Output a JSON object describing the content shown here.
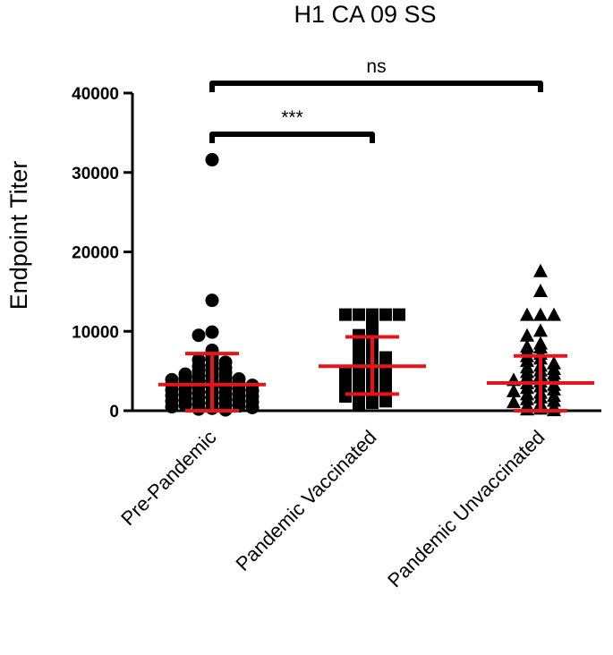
{
  "chart_data": {
    "type": "scatter",
    "title": "H1 CA 09 SS",
    "xlabel": "",
    "ylabel": "Endpoint Titer",
    "ylim": [
      0,
      40000
    ],
    "yticks": [
      0,
      10000,
      20000,
      30000,
      40000
    ],
    "ytick_labels": [
      "0",
      "10000",
      "20000",
      "30000",
      "40000"
    ],
    "grid": false,
    "legend": "none",
    "categories": [
      "Pre-Pandemic",
      "Pandemic Vaccinated",
      "Pandemic Unvaccinated"
    ],
    "summary_color": "#e8141c",
    "series": [
      {
        "category": "Pre-Pandemic",
        "marker": "circle",
        "mean": 3300,
        "sd_low": 0,
        "sd_high": 7200,
        "values": [
          31600,
          13900,
          9900,
          9500,
          7600,
          6800,
          6500,
          6400,
          6100,
          5800,
          5600,
          5400,
          5200,
          5000,
          4800,
          4600,
          4500,
          4300,
          4200,
          4100,
          4000,
          3900,
          3800,
          3700,
          3600,
          3500,
          3400,
          3300,
          3200,
          3100,
          3000,
          2900,
          2800,
          2700,
          2600,
          2500,
          2400,
          2300,
          2200,
          2100,
          2000,
          1900,
          1800,
          1700,
          1600,
          1500,
          1400,
          1300,
          1200,
          1100,
          1000,
          900,
          800,
          700,
          600,
          500,
          400,
          300,
          200,
          100
        ]
      },
      {
        "category": "Pandemic Vaccinated",
        "marker": "square",
        "mean": 5600,
        "sd_low": 2100,
        "sd_high": 9300,
        "values": [
          12100,
          12100,
          12100,
          12100,
          12100,
          11300,
          10700,
          10100,
          9500,
          9000,
          8500,
          8100,
          7700,
          7300,
          7000,
          6700,
          6400,
          6200,
          6000,
          5800,
          5600,
          5400,
          5200,
          5000,
          4800,
          4600,
          4400,
          4200,
          4000,
          3800,
          3600,
          3400,
          3200,
          3000,
          2800,
          2600,
          2400,
          2200,
          2000,
          1800,
          1600,
          1400,
          1200,
          1000,
          800
        ]
      },
      {
        "category": "Pandemic Unvaccinated",
        "marker": "triangle",
        "mean": 3500,
        "sd_low": 0,
        "sd_high": 6900,
        "values": [
          17600,
          15100,
          12100,
          12100,
          12100,
          10100,
          9500,
          8500,
          8100,
          8000,
          7600,
          7200,
          6900,
          6600,
          6300,
          6000,
          5700,
          5500,
          5300,
          5100,
          4900,
          4700,
          4500,
          4300,
          4100,
          3900,
          3700,
          3500,
          3300,
          3100,
          2900,
          2700,
          2500,
          2300,
          2100,
          1900,
          1700,
          1500,
          1300,
          1100,
          900,
          700,
          500,
          300,
          200,
          100
        ]
      }
    ],
    "annotations": [
      {
        "from": "Pre-Pandemic",
        "to": "Pandemic Vaccinated",
        "label": "***"
      },
      {
        "from": "Pre-Pandemic",
        "to": "Pandemic Unvaccinated",
        "label": "ns"
      }
    ]
  }
}
